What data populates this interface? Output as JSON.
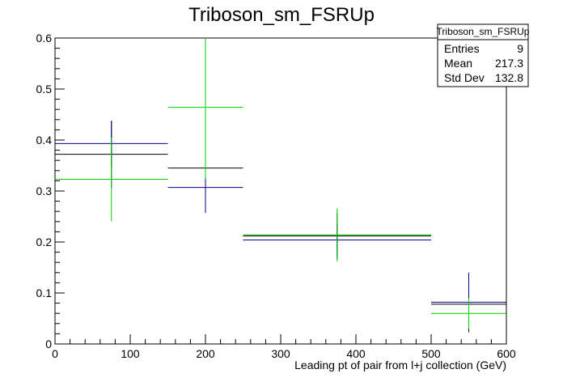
{
  "chart_data": {
    "type": "histogram-errorbars",
    "title": "Triboson_sm_FSRUp",
    "xlabel": "Leading pt of pair from l+j collection (GeV)",
    "ylabel": "",
    "xlim": [
      0,
      600
    ],
    "ylim": [
      0,
      0.6
    ],
    "x_ticks": [
      "0",
      "100",
      "200",
      "300",
      "400",
      "500",
      "600"
    ],
    "y_ticks": [
      "0",
      "0.1",
      "0.2",
      "0.3",
      "0.4",
      "0.5",
      "0.6"
    ],
    "grid": false,
    "colors": {
      "black": "#000000",
      "blue": "#00008b",
      "green": "#00cc00"
    },
    "series": [
      {
        "color": "#000000",
        "bins": [
          {
            "xlow": 0,
            "xhigh": 150,
            "xcenter": 75,
            "y": 0.372,
            "err": 0.065
          },
          {
            "xlow": 150,
            "xhigh": 250,
            "xcenter": 200,
            "y": 0.345,
            "err": 0.084
          },
          {
            "xlow": 250,
            "xhigh": 500,
            "xcenter": 375,
            "y": 0.212,
            "err": 0.045
          },
          {
            "xlow": 500,
            "xhigh": 600,
            "xcenter": 550,
            "y": 0.078,
            "err": 0.055
          }
        ]
      },
      {
        "color": "#00008b",
        "bins": [
          {
            "xlow": 0,
            "xhigh": 150,
            "xcenter": 75,
            "y": 0.393,
            "err": 0.045
          },
          {
            "xlow": 150,
            "xhigh": 250,
            "xcenter": 200,
            "y": 0.307,
            "err": 0.05
          },
          {
            "xlow": 250,
            "xhigh": 500,
            "xcenter": 375,
            "y": 0.204,
            "err": 0.03
          },
          {
            "xlow": 500,
            "xhigh": 600,
            "xcenter": 550,
            "y": 0.082,
            "err": 0.058
          }
        ]
      },
      {
        "color": "#00cc00",
        "bins": [
          {
            "xlow": 0,
            "xhigh": 150,
            "xcenter": 75,
            "y": 0.323,
            "err": 0.082
          },
          {
            "xlow": 150,
            "xhigh": 250,
            "xcenter": 200,
            "y": 0.464,
            "err": 0.14
          },
          {
            "xlow": 250,
            "xhigh": 500,
            "xcenter": 375,
            "y": 0.214,
            "err": 0.052
          },
          {
            "xlow": 500,
            "xhigh": 600,
            "xcenter": 550,
            "y": 0.06,
            "err": 0.03
          }
        ]
      }
    ],
    "stats_box": {
      "title": "Triboson_sm_FSRUp",
      "rows": [
        {
          "label": "Entries",
          "value": "9"
        },
        {
          "label": "Mean",
          "value": "217.3"
        },
        {
          "label": "Std Dev",
          "value": "132.8"
        }
      ]
    }
  }
}
